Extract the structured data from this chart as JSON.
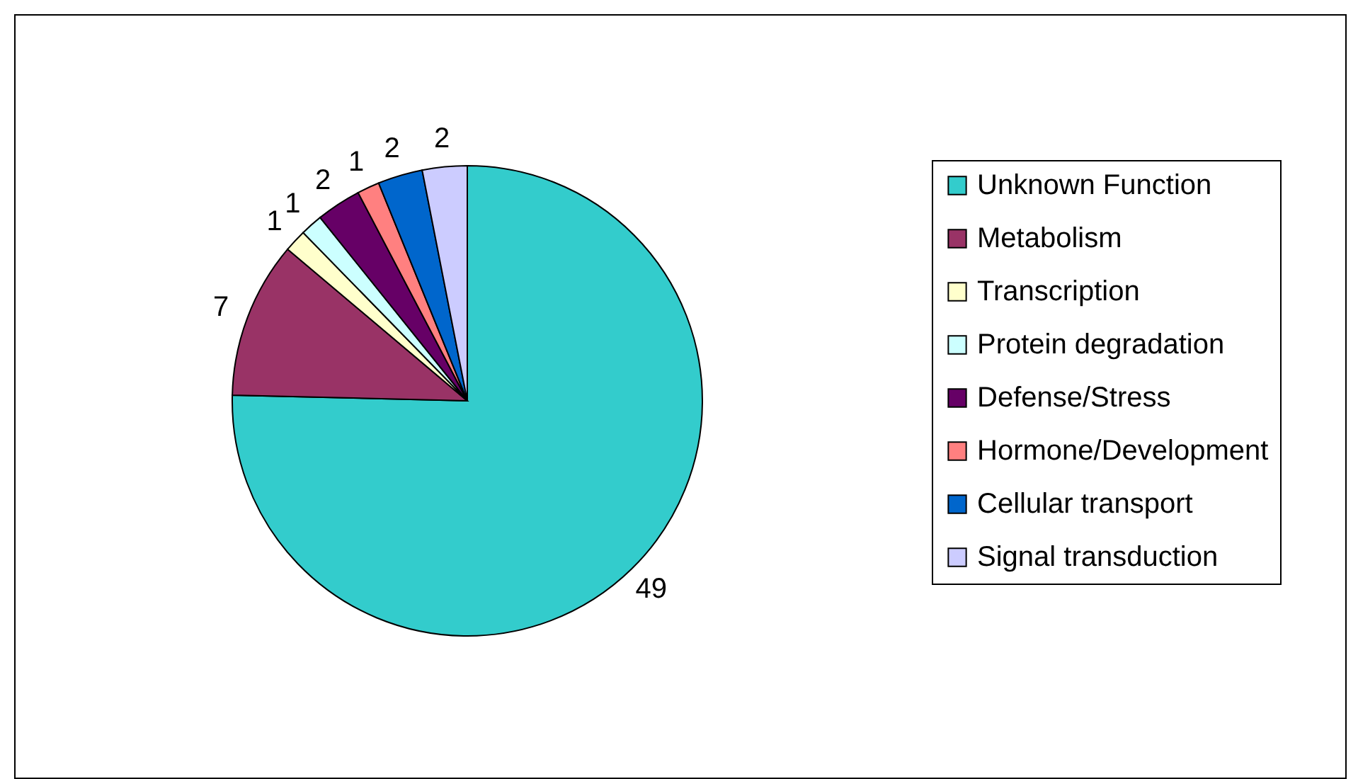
{
  "chart_data": {
    "type": "pie",
    "categories": [
      "Unknown Function",
      "Metabolism",
      "Transcription",
      "Protein degradation",
      "Defense/Stress",
      "Hormone/Development",
      "Cellular transport",
      "Signal transduction"
    ],
    "values": [
      49,
      7,
      1,
      1,
      2,
      1,
      2,
      2
    ],
    "colors": [
      "#33cccc",
      "#993366",
      "#ffffcc",
      "#ccffff",
      "#660066",
      "#ff8080",
      "#0066cc",
      "#ccccff"
    ],
    "data_labels": true,
    "legend": "right"
  }
}
